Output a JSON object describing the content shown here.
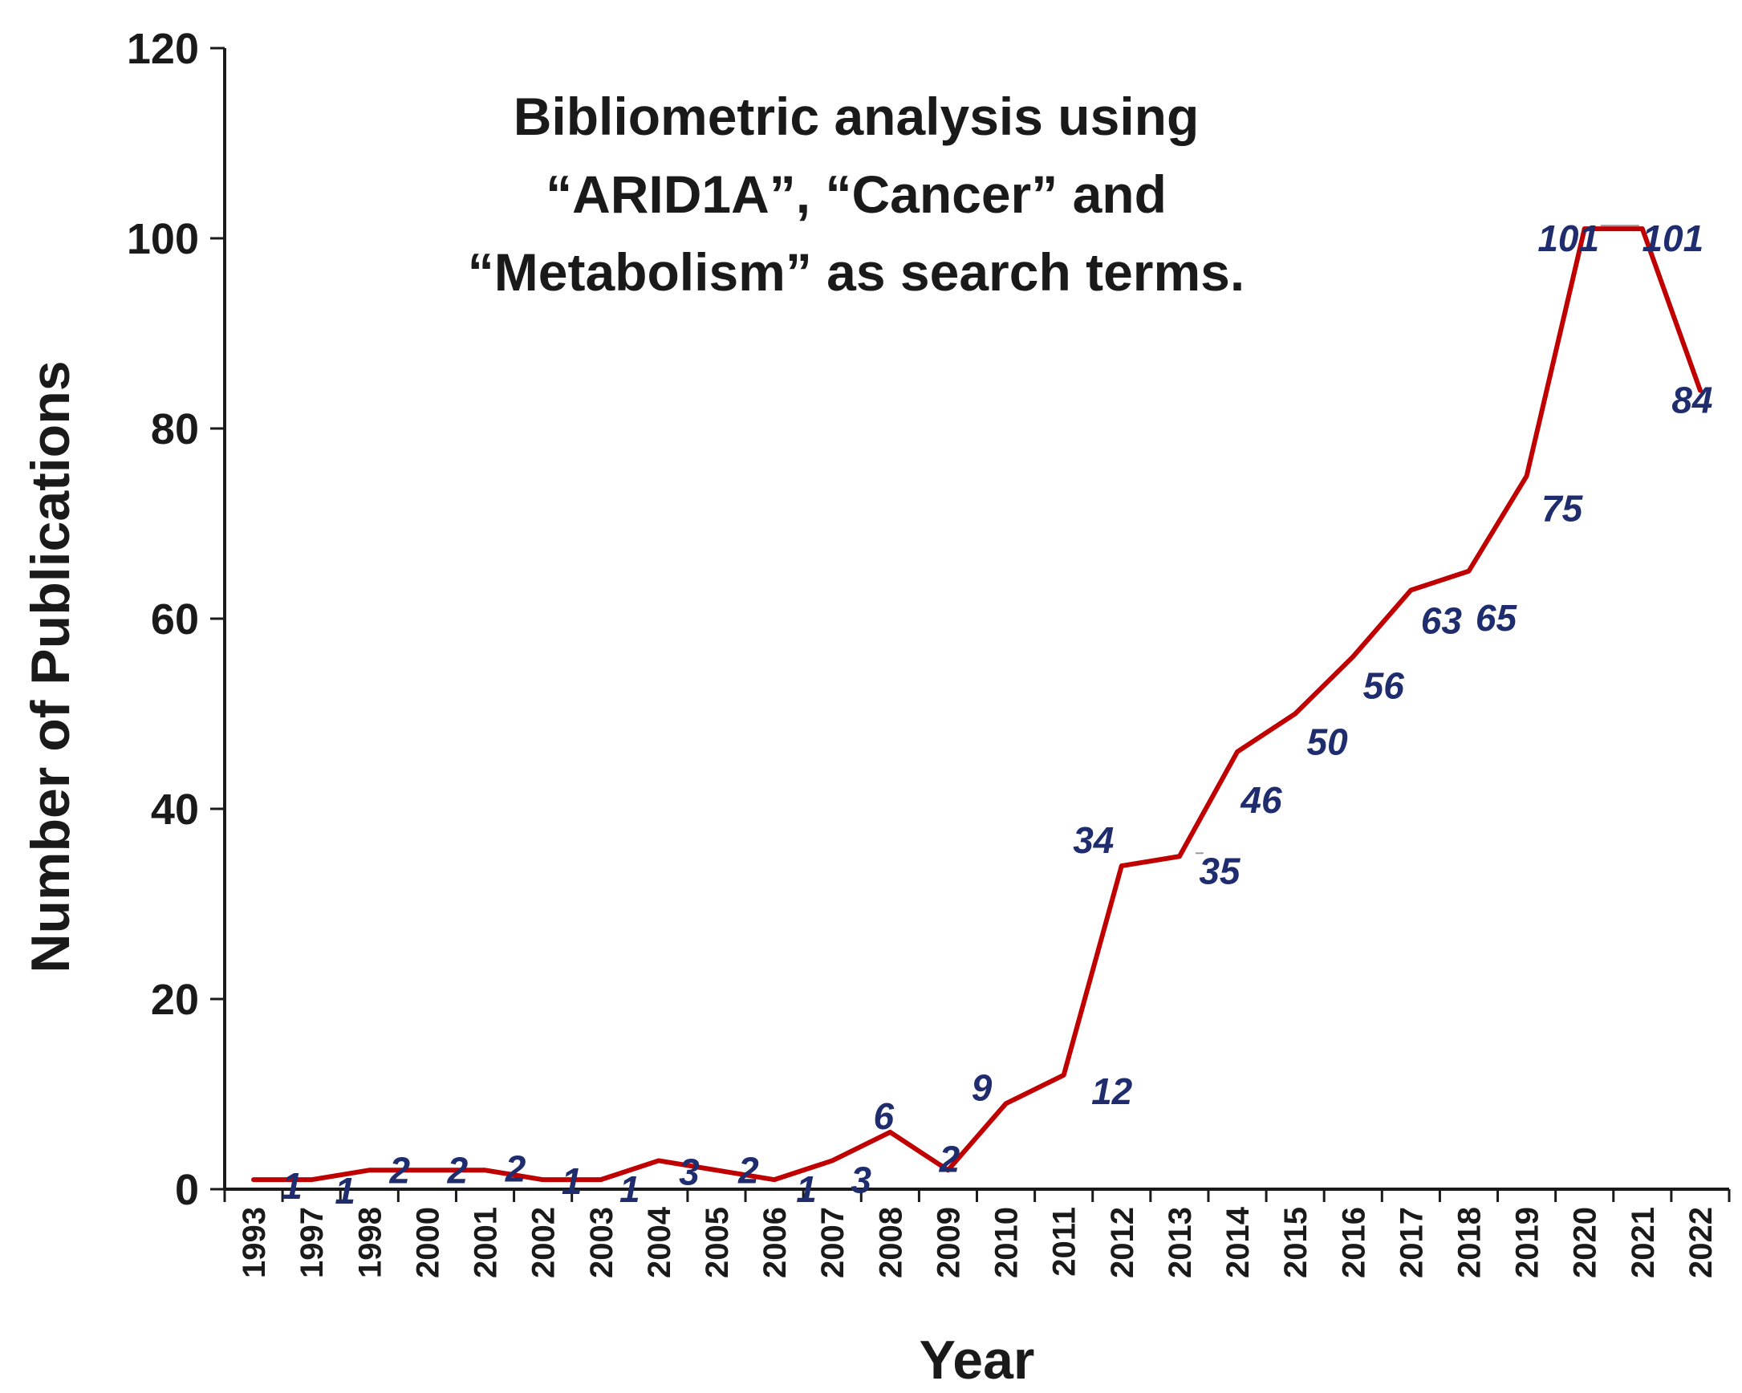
{
  "chart_data": {
    "type": "line",
    "title_lines": [
      "Bibliometric analysis using",
      "“ARID1A”, “Cancer” and",
      "“Metabolism” as search terms."
    ],
    "xlabel": "Year",
    "ylabel": "Number of Publications",
    "ylim": [
      0,
      120
    ],
    "yticks": [
      0,
      20,
      40,
      60,
      80,
      100,
      120
    ],
    "grid": false,
    "categories": [
      "1993",
      "1997",
      "1998",
      "2000",
      "2001",
      "2002",
      "2003",
      "2004",
      "2005",
      "2006",
      "2007",
      "2008",
      "2009",
      "2010",
      "2011",
      "2012",
      "2013",
      "2014",
      "2015",
      "2016",
      "2017",
      "2018",
      "2019",
      "2020",
      "2021",
      "2022"
    ],
    "series": [
      {
        "name": "Number of Publications",
        "values": [
          1,
          1,
          2,
          2,
          2,
          1,
          1,
          3,
          2,
          1,
          3,
          6,
          2,
          9,
          12,
          34,
          35,
          46,
          50,
          56,
          63,
          65,
          75,
          101,
          101,
          84
        ]
      }
    ],
    "data_labels": [
      "1",
      "1",
      "2",
      "2",
      "2",
      "1",
      "1",
      "3",
      "2",
      "1",
      "3",
      "6",
      "2",
      "9",
      "12",
      "34",
      "35",
      "46",
      "50",
      "56",
      "63",
      "65",
      "75",
      "101",
      "101",
      "84"
    ],
    "colors": {
      "line": "#c00000",
      "labels": "#1f2d6e",
      "axis": "#1a1a1a"
    }
  }
}
